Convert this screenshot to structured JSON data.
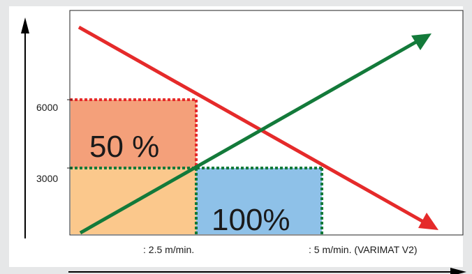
{
  "diagram": {
    "y_ticks": [
      "6000",
      "3000"
    ],
    "x_ticks": [
      ": 2.5 m/min.",
      ": 5 m/min. (VARIMAT V2)"
    ],
    "regions": [
      {
        "label": "50 %",
        "color": "#f4a07a"
      },
      {
        "label": "",
        "color": "#fbc88c"
      },
      {
        "label": "100%",
        "color": "#8ec1e8"
      }
    ],
    "lines": [
      {
        "color": "#e52a2a",
        "direction": "decreasing"
      },
      {
        "color": "#137a3a",
        "direction": "increasing"
      }
    ],
    "dotted_colors": {
      "red": "#e52a2a",
      "green": "#137a3a"
    },
    "background": "#e6e7e8"
  }
}
